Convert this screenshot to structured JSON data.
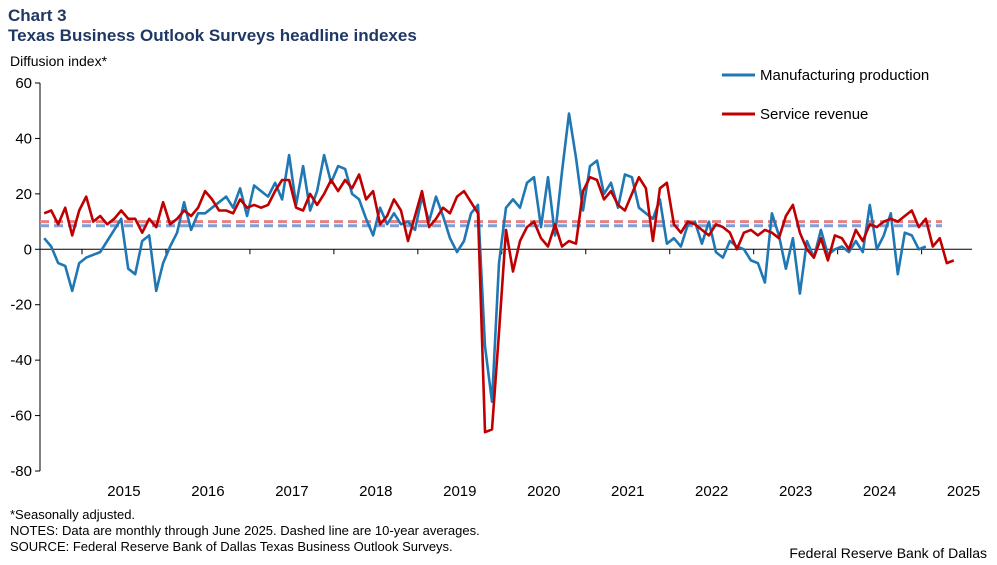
{
  "header": {
    "chart_label": "Chart 3",
    "title": "Texas Business Outlook Surveys headline indexes",
    "y_axis_label": "Diffusion index*"
  },
  "footer": {
    "note1": "*Seasonally adjusted.",
    "note2": "NOTES: Data are monthly through June 2025. Dashed line are 10-year averages.",
    "note3": "SOURCE: Federal Reserve Bank of Dallas Texas Business Outlook Surveys.",
    "brand": "Federal Reserve Bank of Dallas"
  },
  "chart_data": {
    "type": "line",
    "title": "Texas Business Outlook Surveys headline indexes",
    "ylabel": "Diffusion index*",
    "xlabel": "",
    "ylim": [
      -80,
      60
    ],
    "yticks": [
      -80,
      -60,
      -40,
      -20,
      0,
      20,
      40,
      60
    ],
    "x_range": [
      2014.5,
      2025.6
    ],
    "xticks": [
      2015,
      2016,
      2017,
      2018,
      2019,
      2020,
      2021,
      2022,
      2023,
      2024,
      2025
    ],
    "legend_position": "top-right",
    "series": [
      {
        "name": "Manufacturing production",
        "color": "#1f77b4",
        "average": 8.5,
        "values": [
          4,
          1,
          -5,
          -6,
          -15,
          -5,
          -3,
          -2,
          -1,
          3,
          7,
          11,
          -7,
          -9,
          3,
          5,
          -15,
          -5,
          1,
          6,
          17,
          7,
          13,
          13,
          15,
          17,
          19,
          15,
          22,
          12,
          23,
          21,
          19,
          24,
          18,
          34,
          16,
          30,
          14,
          21,
          34,
          24,
          30,
          29,
          20,
          18,
          11,
          5,
          15,
          9,
          13,
          9,
          10,
          7,
          19,
          10,
          19,
          12,
          4,
          -1,
          3,
          13,
          16,
          -35,
          -55,
          -5,
          15,
          18,
          15,
          24,
          26,
          8,
          26,
          5,
          28,
          49,
          33,
          14,
          30,
          32,
          20,
          24,
          15,
          27,
          26,
          15,
          13,
          11,
          18,
          2,
          4,
          1,
          9,
          10,
          2,
          10,
          -1,
          -3,
          3,
          1,
          0,
          -4,
          -5,
          -12,
          13,
          5,
          -7,
          4,
          -16,
          3,
          -3,
          7,
          -2,
          0,
          1,
          -1,
          3,
          -1,
          16,
          0,
          5,
          13,
          -9,
          6,
          5,
          0,
          1
        ],
        "average_color": "#7f9fd6"
      },
      {
        "name": "Service revenue",
        "color": "#c00000",
        "average": 10,
        "values": [
          13,
          14,
          9,
          15,
          5,
          14,
          19,
          10,
          12,
          9,
          11,
          14,
          11,
          11,
          6,
          11,
          8,
          17,
          9,
          11,
          14,
          12,
          15,
          21,
          18,
          14,
          14,
          13,
          18,
          15,
          16,
          15,
          16,
          21,
          25,
          25,
          15,
          14,
          20,
          16,
          20,
          25,
          21,
          25,
          22,
          27,
          18,
          21,
          9,
          12,
          18,
          14,
          3,
          12,
          21,
          8,
          11,
          15,
          13,
          19,
          21,
          17,
          13,
          -66,
          -65,
          -30,
          7,
          -8,
          3,
          8,
          10,
          4,
          1,
          9,
          1,
          3,
          2,
          21,
          26,
          25,
          18,
          21,
          16,
          14,
          20,
          26,
          22,
          3,
          22,
          24,
          9,
          6,
          10,
          9,
          7,
          5,
          9,
          8,
          6,
          0,
          6,
          7,
          5,
          7,
          6,
          4,
          12,
          16,
          6,
          0,
          -3,
          4,
          -4,
          5,
          4,
          0,
          7,
          3,
          9,
          8,
          10,
          11,
          10,
          12,
          14,
          8,
          11,
          1,
          4,
          -5,
          -4
        ],
        "average_color": "#e88080"
      }
    ]
  }
}
